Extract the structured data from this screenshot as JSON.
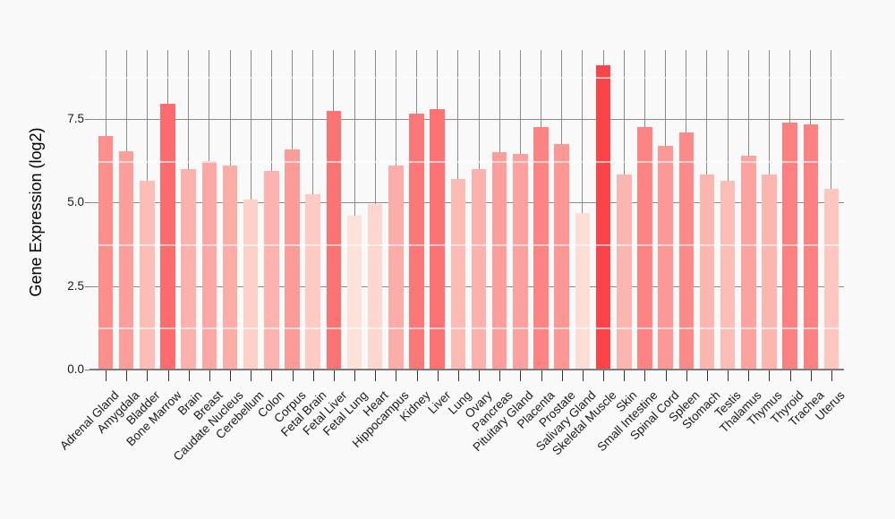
{
  "chart_data": {
    "type": "bar",
    "title": "",
    "xlabel": "",
    "ylabel": "Gene Expression (log2)",
    "ylim": [
      0,
      9.57
    ],
    "y_major_ticks": [
      0.0,
      2.5,
      5.0,
      7.5
    ],
    "y_tick_labels": [
      "0.0",
      "2.5",
      "5.0",
      "7.5"
    ],
    "y_minor_ticks": [
      1.25,
      3.75,
      6.25,
      8.75
    ],
    "grid": "vertical gray line per category; horizontal gray major lines; white horizontal minor lines; no legend",
    "categories": [
      "Adrenal Gland",
      "Amygdala",
      "Bladder",
      "Bone Marrow",
      "Brain",
      "Breast",
      "Caudate Nucleus",
      "Cerebellum",
      "Colon",
      "Corpus",
      "Fetal Brain",
      "Fetal Liver",
      "Fetal Lung",
      "Heart",
      "Hippocampus",
      "Kidney",
      "Liver",
      "Lung",
      "Ovary",
      "Pancreas",
      "Pituitary Gland",
      "Placenta",
      "Prostate",
      "Salivary Gland",
      "Skeletal Muscle",
      "Skin",
      "Small Intestine",
      "Spinal Cord",
      "Spleen",
      "Stomach",
      "Testis",
      "Thalamus",
      "Thymus",
      "Thyroid",
      "Trachea",
      "Uterus"
    ],
    "values": [
      7.0,
      6.55,
      5.65,
      7.95,
      6.0,
      6.25,
      6.1,
      5.1,
      5.95,
      6.6,
      5.25,
      7.75,
      4.6,
      4.95,
      6.1,
      7.65,
      7.8,
      5.7,
      6.0,
      6.5,
      6.45,
      7.25,
      6.75,
      4.7,
      9.1,
      5.85,
      7.25,
      6.7,
      7.1,
      5.85,
      5.65,
      6.4,
      5.85,
      7.4,
      7.35,
      5.4
    ],
    "color_scale": {
      "mapped_to": "value",
      "min_color": "#fde2d8",
      "max_color": "#fb4449"
    }
  },
  "colors": {
    "background": "#f9f9f9",
    "grid_major": "#8a8a8a",
    "grid_minor": "#ffffff",
    "axis_line": "#7a7a7a",
    "tick_mark": "#333333",
    "text": "#1a1a1a"
  }
}
